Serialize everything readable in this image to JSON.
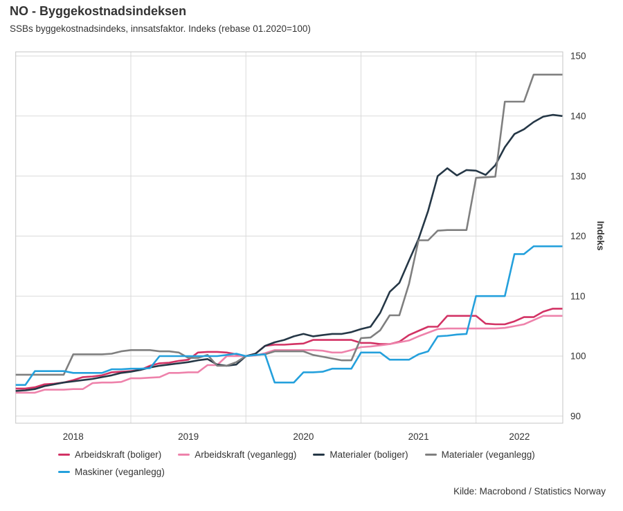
{
  "header": {
    "title": "NO - Byggekostnadsindeksen",
    "subtitle": "SSBs byggekostnadsindeks, innsatsfaktor. Indeks (rebase 01.2020=100)"
  },
  "footer": {
    "source": "Kilde: Macrobond / Statistics Norway"
  },
  "colors": {
    "grid": "#dadada",
    "border": "#c4c4c4",
    "text": "#333333"
  },
  "chart_data": {
    "type": "line",
    "title": "NO - Byggekostnadsindeksen",
    "ylabel": "Indeks",
    "ylim": [
      90,
      150
    ],
    "y_tick_step": 10,
    "y_tick_labels": [
      "90",
      "100",
      "110",
      "120",
      "130",
      "140",
      "150"
    ],
    "x_year_labels": [
      "2018",
      "2019",
      "2020",
      "2021",
      "2022"
    ],
    "x_start": "2018-01",
    "x_end": "2022-10",
    "frequency": "monthly",
    "grid": true,
    "legend_position": "bottom",
    "series": [
      {
        "name": "Arbeidskraft (boliger)",
        "color": "#d23264",
        "values": [
          94.6,
          94.6,
          94.8,
          95.3,
          95.4,
          95.6,
          96.0,
          96.5,
          96.6,
          96.8,
          97.3,
          97.4,
          97.5,
          97.7,
          98.4,
          98.8,
          98.9,
          99.2,
          99.4,
          100.6,
          100.7,
          100.7,
          100.6,
          100.3,
          100.0,
          100.4,
          101.7,
          101.9,
          101.9,
          102.0,
          102.1,
          102.7,
          102.7,
          102.7,
          102.7,
          102.7,
          102.2,
          102.2,
          102.0,
          102.0,
          102.4,
          103.5,
          104.2,
          104.9,
          104.9,
          106.7,
          106.7,
          106.7,
          106.7,
          105.4,
          105.3,
          105.3,
          105.8,
          106.5,
          106.5,
          107.4,
          107.9,
          107.9
        ]
      },
      {
        "name": "Arbeidskraft (veganlegg)",
        "color": "#ee82ab",
        "values": [
          93.9,
          93.9,
          93.9,
          94.4,
          94.4,
          94.4,
          94.5,
          94.5,
          95.5,
          95.6,
          95.6,
          95.7,
          96.3,
          96.3,
          96.4,
          96.5,
          97.2,
          97.2,
          97.3,
          97.3,
          98.5,
          98.5,
          100.0,
          100.0,
          100.0,
          100.1,
          100.5,
          101.0,
          101.0,
          101.0,
          101.0,
          101.0,
          100.9,
          100.6,
          100.6,
          101.0,
          101.5,
          101.6,
          101.8,
          102.0,
          102.3,
          102.6,
          103.3,
          103.9,
          104.5,
          104.6,
          104.6,
          104.6,
          104.6,
          104.6,
          104.6,
          104.7,
          105.0,
          105.3,
          106.0,
          106.7,
          106.7,
          106.7
        ]
      },
      {
        "name": "Materialer (boliger)",
        "color": "#253746",
        "values": [
          94.2,
          94.3,
          94.5,
          95.0,
          95.3,
          95.6,
          95.8,
          96.0,
          96.2,
          96.5,
          96.8,
          97.2,
          97.4,
          97.7,
          98.1,
          98.4,
          98.6,
          98.8,
          99.0,
          99.3,
          99.5,
          98.6,
          98.4,
          98.6,
          100.0,
          100.4,
          101.7,
          102.3,
          102.7,
          103.3,
          103.7,
          103.3,
          103.5,
          103.7,
          103.7,
          104.0,
          104.5,
          104.9,
          107.2,
          110.7,
          112.2,
          115.9,
          119.5,
          124.2,
          130.0,
          131.3,
          130.1,
          131.0,
          130.9,
          130.2,
          131.8,
          134.8,
          137.0,
          137.8,
          139.0,
          139.9,
          140.2,
          140.0
        ]
      },
      {
        "name": "Materialer (veganlegg)",
        "color": "#7f7f7f",
        "values": [
          96.9,
          96.9,
          96.9,
          96.9,
          96.9,
          96.9,
          100.3,
          100.3,
          100.3,
          100.3,
          100.4,
          100.8,
          101.0,
          101.0,
          101.0,
          100.8,
          100.8,
          100.6,
          99.7,
          99.7,
          100.2,
          98.4,
          98.4,
          99.0,
          100.0,
          100.2,
          100.3,
          100.8,
          100.8,
          100.8,
          100.8,
          100.2,
          99.9,
          99.6,
          99.3,
          99.3,
          103.0,
          103.1,
          104.3,
          106.8,
          106.8,
          112.0,
          119.3,
          119.3,
          120.9,
          121.0,
          121.0,
          121.0,
          129.7,
          129.8,
          129.9,
          142.4,
          142.4,
          142.4,
          146.9,
          146.9,
          146.9,
          146.9
        ]
      },
      {
        "name": "Maskiner (veganlegg)",
        "color": "#24a0dc",
        "values": [
          95.2,
          95.2,
          97.5,
          97.5,
          97.5,
          97.5,
          97.2,
          97.2,
          97.2,
          97.2,
          97.8,
          97.8,
          97.9,
          97.9,
          98.0,
          100.0,
          100.0,
          100.0,
          100.0,
          100.0,
          100.0,
          100.0,
          100.2,
          100.4,
          100.0,
          100.2,
          100.3,
          95.6,
          95.6,
          95.6,
          97.3,
          97.3,
          97.4,
          97.9,
          97.9,
          97.9,
          100.6,
          100.6,
          100.6,
          99.4,
          99.4,
          99.4,
          100.3,
          100.8,
          103.3,
          103.4,
          103.6,
          103.7,
          110.0,
          110.0,
          110.0,
          110.0,
          117.0,
          117.0,
          118.3,
          118.3,
          118.3,
          118.3
        ]
      }
    ]
  }
}
